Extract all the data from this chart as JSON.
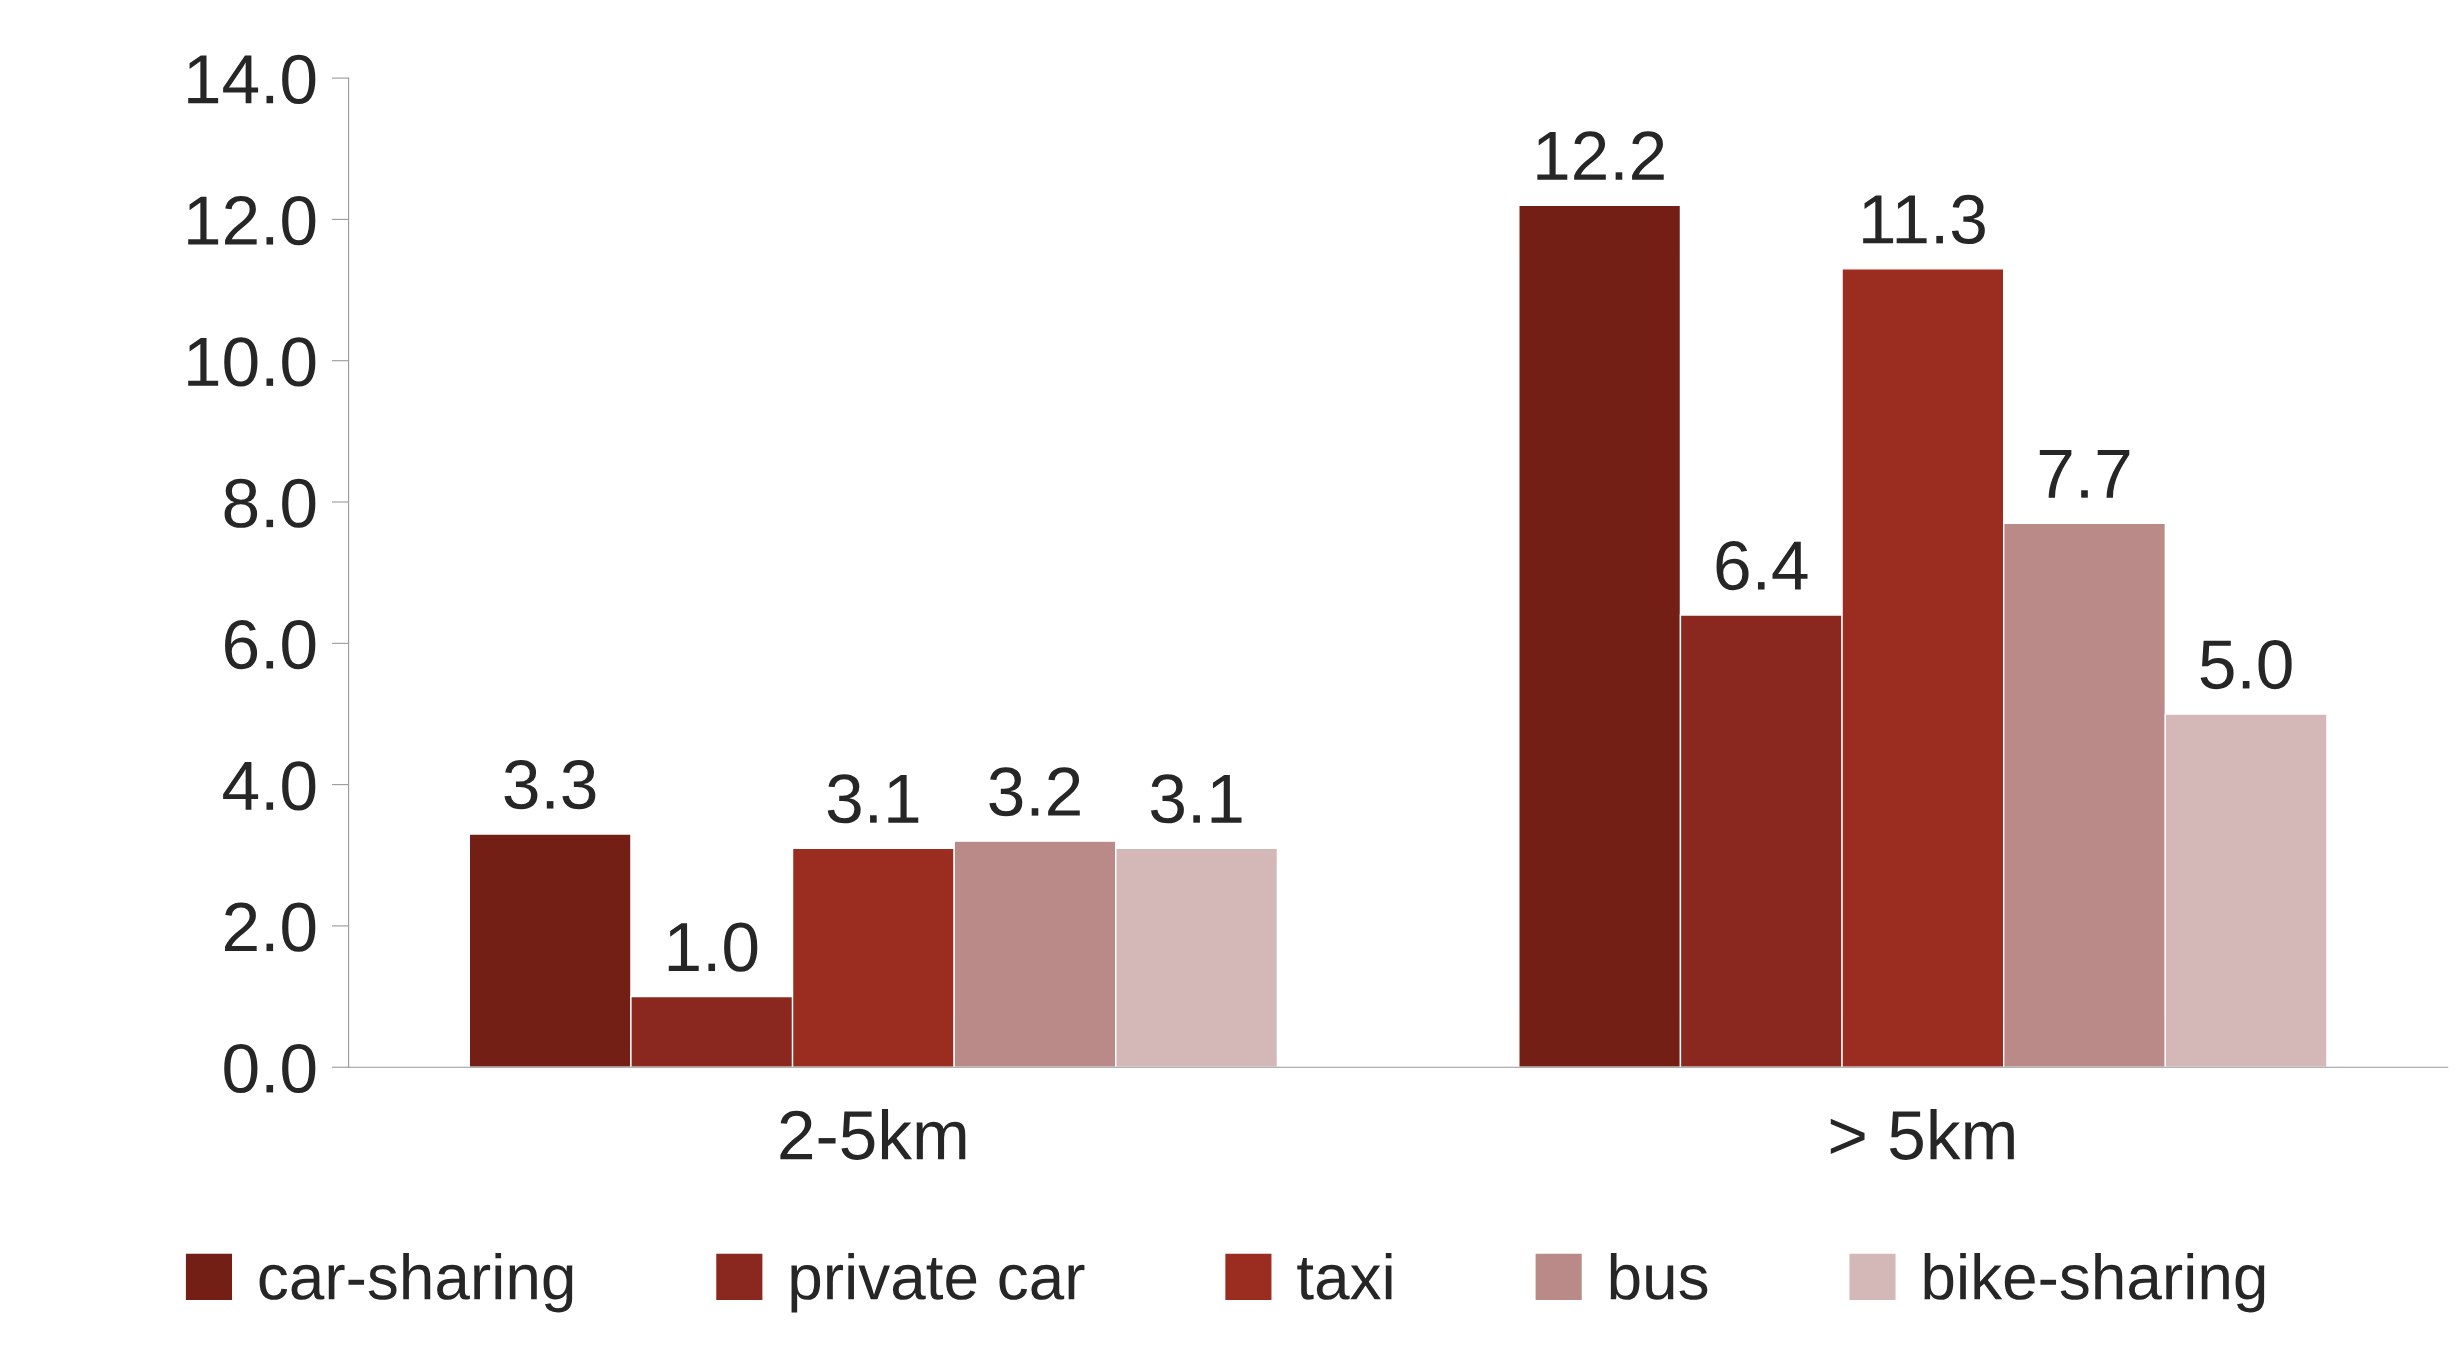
{
  "chart_data": {
    "type": "bar",
    "categories": [
      "2-5km",
      "> 5km"
    ],
    "series": [
      {
        "name": "car-sharing",
        "color": "#731f16",
        "values": [
          3.3,
          12.2
        ],
        "value_labels": [
          "3.3",
          "12.2"
        ]
      },
      {
        "name": "private car",
        "color": "#8a281f",
        "values": [
          1.0,
          6.4
        ],
        "value_labels": [
          "1.0",
          "6.4"
        ]
      },
      {
        "name": "taxi",
        "color": "#9b2d20",
        "values": [
          3.1,
          11.3
        ],
        "value_labels": [
          "3.1",
          "11.3"
        ]
      },
      {
        "name": "bus",
        "color": "#b98a87",
        "values": [
          3.2,
          7.7
        ],
        "value_labels": [
          "3.2",
          "7.7"
        ]
      },
      {
        "name": "bike-sharing",
        "color": "#d4b8b8",
        "values": [
          3.1,
          5.0
        ],
        "value_labels": [
          "3.1",
          "5.0"
        ]
      }
    ],
    "ylim": [
      0,
      14
    ],
    "yticks": [
      {
        "value": 0,
        "label": "0.0"
      },
      {
        "value": 2,
        "label": "2.0"
      },
      {
        "value": 4,
        "label": "4.0"
      },
      {
        "value": 6,
        "label": "6.0"
      },
      {
        "value": 8,
        "label": "8.0"
      },
      {
        "value": 10,
        "label": "10.0"
      },
      {
        "value": 12,
        "label": "12.0"
      },
      {
        "value": 14,
        "label": "14.0"
      }
    ],
    "grid": false,
    "legend": "bottom"
  }
}
